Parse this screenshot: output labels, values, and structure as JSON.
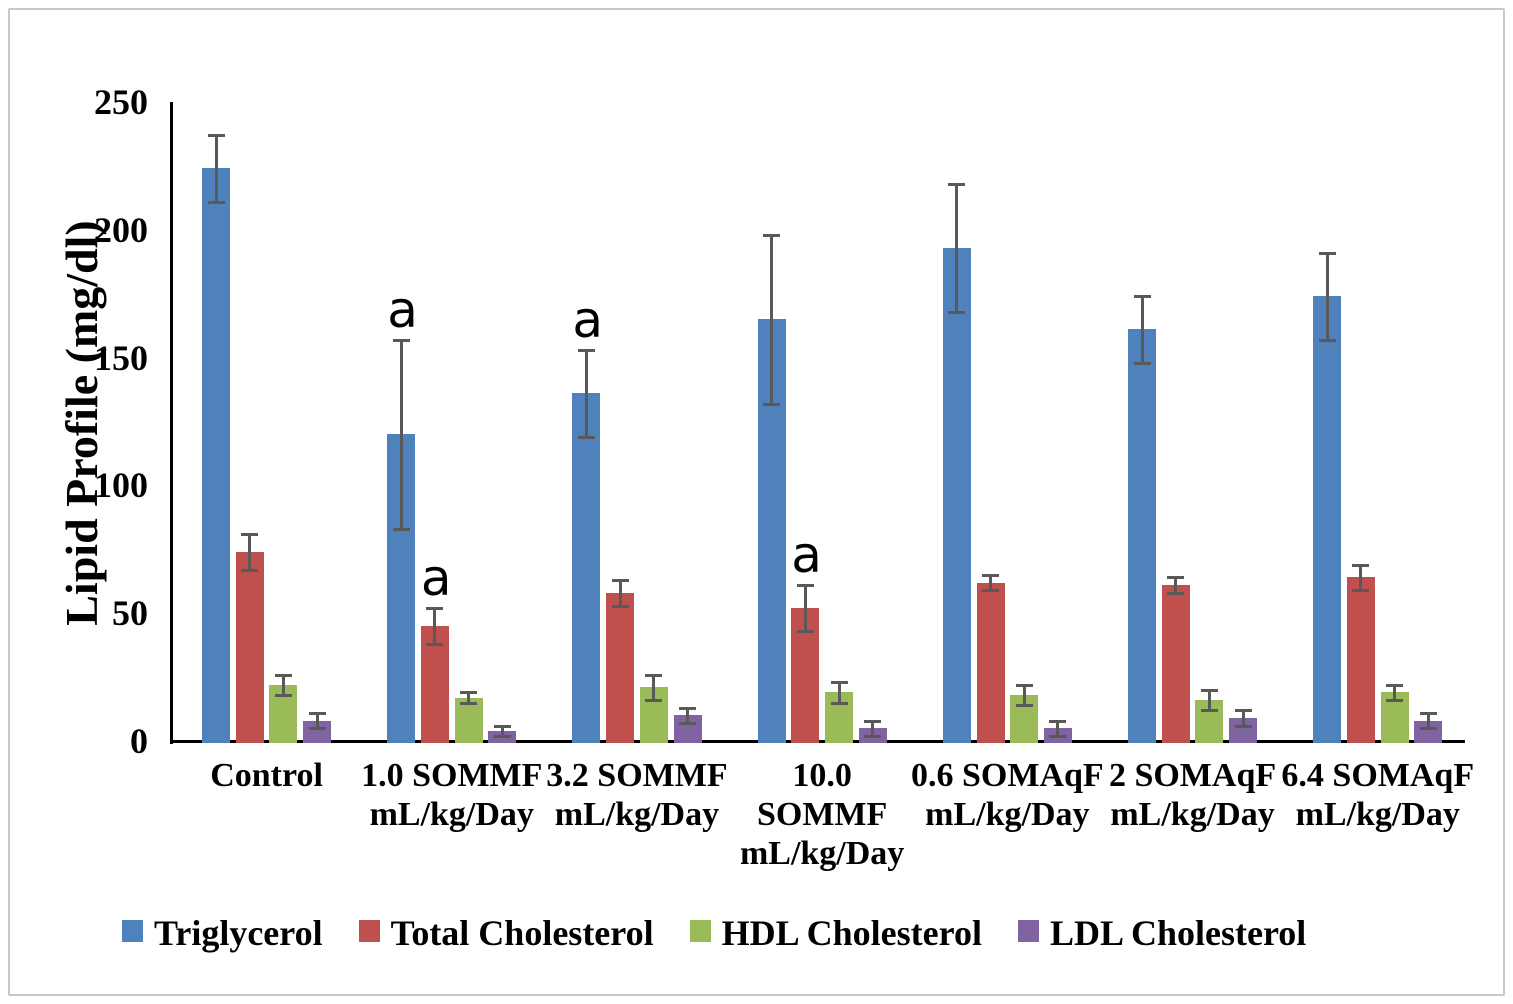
{
  "chart_data": {
    "type": "bar",
    "title": "",
    "ylabel": "Lipid Profile (mg/dl)",
    "xlabel": "",
    "ylim": [
      0,
      250
    ],
    "yticks": [
      0,
      50,
      100,
      150,
      200,
      250
    ],
    "grid": false,
    "legend_position": "bottom",
    "error_bars": true,
    "error_bar_color": "#595959",
    "axis_color": "#000000",
    "categories": [
      "Control",
      "1.0 SOMMF mL/kg/Day",
      "3.2 SOMMF mL/kg/Day",
      "10.0 SOMMF mL/kg/Day",
      "0.6 SOMAqF mL/kg/Day",
      "2 SOMAqF mL/kg/Day",
      "6.4 SOMAqF mL/kg/Day"
    ],
    "category_label_lines": [
      [
        "Control"
      ],
      [
        "1.0 SOMMF",
        "mL/kg/Day"
      ],
      [
        "3.2 SOMMF",
        "mL/kg/Day"
      ],
      [
        "10.0",
        "SOMMF",
        "mL/kg/Day"
      ],
      [
        "0.6 SOMAqF",
        "mL/kg/Day"
      ],
      [
        "2 SOMAqF",
        "mL/kg/Day"
      ],
      [
        "6.4 SOMAqF",
        "mL/kg/Day"
      ]
    ],
    "series": [
      {
        "name": "Triglycerol",
        "color": "#4F81BD",
        "values": [
          224,
          120,
          136,
          165,
          193,
          161,
          174
        ],
        "errors": [
          13,
          37,
          17,
          33,
          25,
          13,
          17
        ]
      },
      {
        "name": "Total Cholesterol",
        "color": "#C0504D",
        "values": [
          74,
          45,
          58,
          52,
          62,
          61,
          64
        ],
        "errors": [
          7,
          7,
          5,
          9,
          3,
          3,
          5
        ]
      },
      {
        "name": "HDL Cholesterol",
        "color": "#9BBB59",
        "values": [
          22,
          17,
          21,
          19,
          18,
          16,
          19
        ],
        "errors": [
          4,
          2,
          5,
          4,
          4,
          4,
          3
        ]
      },
      {
        "name": "LDL Cholesterol",
        "color": "#8064A2",
        "values": [
          8,
          4,
          10,
          5,
          5,
          9,
          8
        ],
        "errors": [
          3,
          2,
          3,
          3,
          3,
          3,
          3
        ]
      }
    ],
    "annotations": [
      {
        "text": "a",
        "series": 0,
        "category": 1
      },
      {
        "text": "a",
        "series": 1,
        "category": 1
      },
      {
        "text": "a",
        "series": 0,
        "category": 2
      },
      {
        "text": "a",
        "series": 1,
        "category": 3
      }
    ]
  }
}
